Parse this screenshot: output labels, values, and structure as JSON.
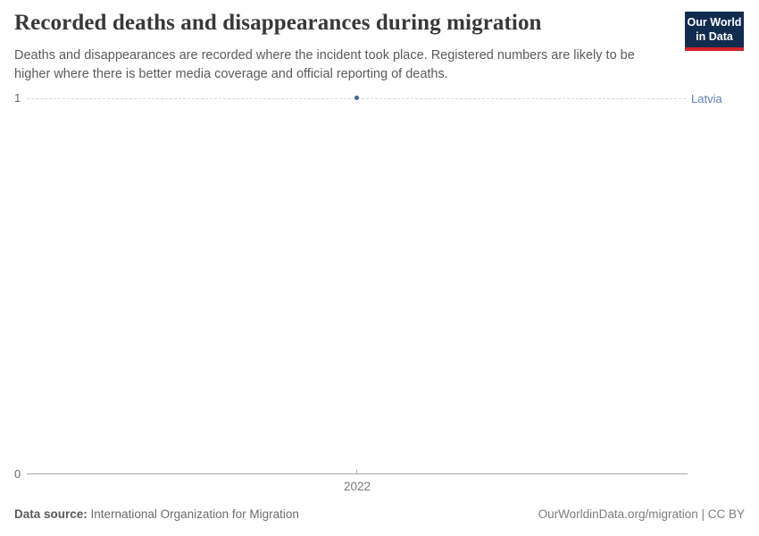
{
  "header": {
    "logo": {
      "line1": "Our World",
      "line2": "in Data"
    }
  },
  "chart_data": {
    "type": "line",
    "title": "Recorded deaths and disappearances during migration",
    "subtitle": "Deaths and disappearances are recorded where the incident took place. Registered numbers are likely to be higher where there is better media coverage and official reporting of deaths.",
    "x": [
      2022
    ],
    "series": [
      {
        "name": "Latvia",
        "values": [
          1
        ],
        "color": "#44639e"
      }
    ],
    "xlabel": "",
    "ylabel": "",
    "ylim": [
      0,
      1
    ],
    "yticks": [
      0,
      1
    ],
    "xticks": [
      2022
    ],
    "grid": true,
    "gridline_style": "dashed",
    "legend_position": "entity-label-right"
  },
  "footer": {
    "source_label": "Data source:",
    "source_value": "International Organization for Migration",
    "credit": "OurWorldinData.org/migration | CC BY"
  },
  "colors": {
    "series": "#44639e",
    "entity_label": "#6080c0",
    "logo_background": "#112c4f",
    "logo_bar": "#d1232a",
    "gridline": "#d9d9d9",
    "axis_line": "#a8a8a8",
    "tick_text": "#666666"
  }
}
